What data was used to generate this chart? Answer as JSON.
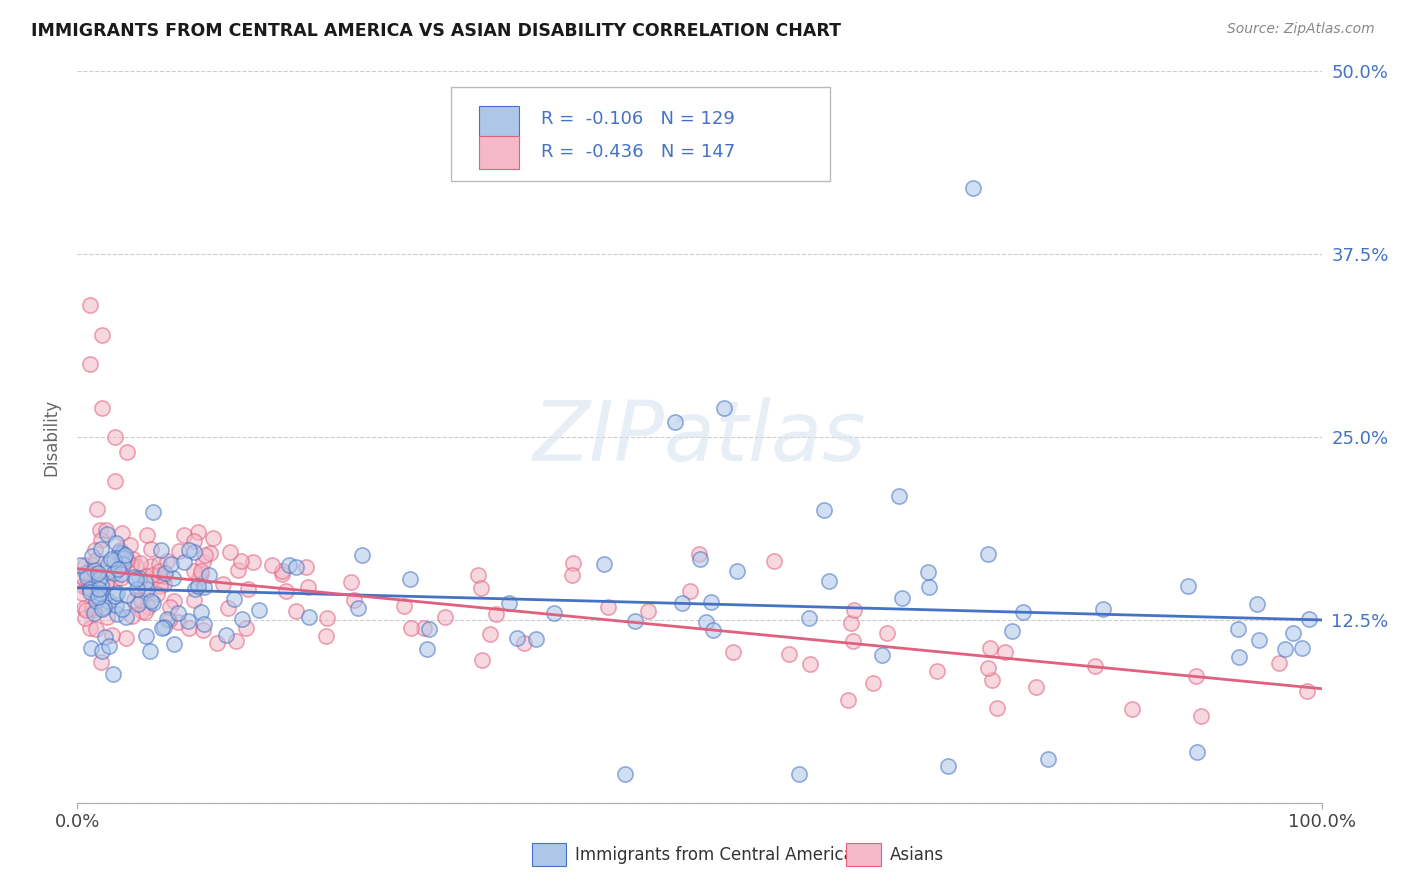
{
  "title": "IMMIGRANTS FROM CENTRAL AMERICA VS ASIAN DISABILITY CORRELATION CHART",
  "source": "Source: ZipAtlas.com",
  "ylabel": "Disability",
  "legend_entries": [
    {
      "label": "Immigrants from Central America",
      "R": -0.106,
      "N": 129,
      "face_color": "#aec6e8",
      "edge_color": "#4472c4",
      "line_color": "#4472c4"
    },
    {
      "label": "Asians",
      "R": -0.436,
      "N": 147,
      "face_color": "#f4b8c8",
      "edge_color": "#e0607e",
      "line_color": "#e0607e"
    }
  ],
  "xlim": [
    0,
    1
  ],
  "ylim": [
    0,
    0.5
  ],
  "yticks": [
    0.0,
    0.125,
    0.25,
    0.375,
    0.5
  ],
  "ytick_labels": [
    "",
    "12.5%",
    "25.0%",
    "37.5%",
    "50.0%"
  ],
  "xtick_labels": [
    "0.0%",
    "100.0%"
  ],
  "background_color": "#ffffff",
  "watermark_text": "ZIPatlas",
  "scatter_size": 120,
  "scatter_linewidth": 1.2,
  "scatter_alpha": 0.55,
  "blue_line_slope": -0.022,
  "blue_line_intercept": 0.147,
  "pink_line_slope": -0.082,
  "pink_line_intercept": 0.16,
  "legend_text_color": "#4472c4",
  "legend_label_color": "#333333",
  "title_color": "#1a1a1a",
  "source_color": "#888888",
  "grid_color": "#cccccc",
  "axis_color": "#aaaaaa",
  "ylabel_color": "#666666",
  "ytick_color": "#4472c4"
}
